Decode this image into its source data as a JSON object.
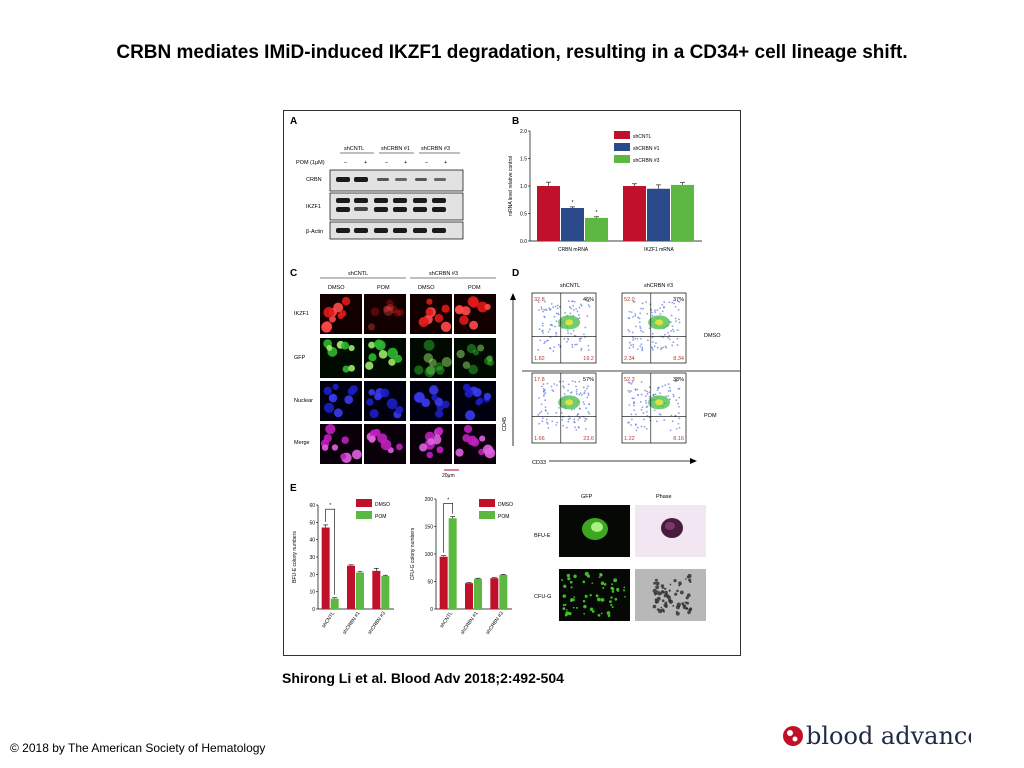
{
  "slide": {
    "title": "CRBN mediates IMiD-induced IKZF1 degradation, resulting in a CD34+ cell lineage shift.",
    "citation": "Shirong Li et al. Blood Adv 2018;2:492-504",
    "copyright": "© 2018 by The American Society of Hematology",
    "logo_text": "blood advances"
  },
  "colors": {
    "shCNTL": "#c0102a",
    "shCRBN1": "#2b4a8a",
    "shCRBN3": "#5cb840",
    "DMSO": "#c0102a",
    "POM": "#5cb840",
    "logo": "#c0102a"
  },
  "figure": {
    "panelA": {
      "label": "A",
      "groups": [
        "shCNTL",
        "shCRBN #1",
        "shCRBN #3"
      ],
      "treatment_label": "POM (1μM)",
      "lane_signs": [
        "–",
        "+",
        "–",
        "+",
        "–",
        "+"
      ],
      "blots": [
        "CRBN",
        "IKZF1",
        "β-Actin"
      ]
    },
    "panelC": {
      "label": "C",
      "groups": [
        "shCNTL",
        "shCRBN #3"
      ],
      "conditions": [
        "DMSO",
        "POM",
        "DMSO",
        "POM"
      ],
      "rows": [
        "IKZF1",
        "GFP",
        "Nuclear",
        "Merge"
      ],
      "scale_bar": "20μm"
    },
    "panelD": {
      "label": "D",
      "columns": [
        "shCNTL",
        "shCRBN #3"
      ],
      "rows": [
        "DMSO",
        "POM"
      ],
      "xaxis": "CD33",
      "yaxis": "CD45",
      "quadrants": [
        {
          "ul": "32.8",
          "ur": "46%",
          "ll": "1.82",
          "lr": "19.2"
        },
        {
          "ul": "52.0",
          "ur": "37%",
          "ll": "2.34",
          "lr": "8.34"
        },
        {
          "ul": "17.8",
          "ur": "57%",
          "ll": "1.66",
          "lr": "23.6"
        },
        {
          "ul": "52.3",
          "ur": "38%",
          "ll": "1.22",
          "lr": "8.16"
        }
      ]
    },
    "panelE": {
      "label": "E",
      "image_columns": [
        "GFP",
        "Phase"
      ],
      "image_rows": [
        "BFU-E",
        "CFU-G"
      ]
    }
  },
  "chart_data": [
    {
      "panel": "B",
      "type": "bar",
      "categories": [
        "CRBN mRNA",
        "IKZF1 mRNA"
      ],
      "series": [
        {
          "name": "shCNTL",
          "values": [
            1.0,
            1.0
          ]
        },
        {
          "name": "shCRBN #1",
          "values": [
            0.6,
            0.95
          ]
        },
        {
          "name": "shCRBN #3",
          "values": [
            0.42,
            1.02
          ]
        }
      ],
      "errors": [
        [
          0.07,
          0.04
        ],
        [
          0.02,
          0.07
        ],
        [
          0.02,
          0.04
        ]
      ],
      "ylabel": "mRNA level relative control",
      "ylim": [
        0,
        2.0
      ],
      "yticks": [
        "0.0",
        "0.5",
        "1.0",
        "1.5",
        "2.0"
      ],
      "significance": [
        "*",
        "*"
      ],
      "legend": "top-right"
    },
    {
      "panel": "E-left",
      "type": "bar",
      "categories": [
        "shCNTL",
        "shCRBN #1",
        "shCRBN #3"
      ],
      "series": [
        {
          "name": "DMSO",
          "values": [
            47,
            25,
            22
          ]
        },
        {
          "name": "POM",
          "values": [
            6,
            21,
            19
          ]
        }
      ],
      "errors": [
        [
          1.5,
          0.5,
          1.5
        ],
        [
          0.5,
          0.5,
          0.5
        ]
      ],
      "ylabel": "BFU-E colony numbers",
      "ylim": [
        0,
        60
      ],
      "yticks": [
        "0",
        "10",
        "20",
        "30",
        "40",
        "50",
        "60"
      ],
      "significance": [
        "*"
      ],
      "legend": "top-right"
    },
    {
      "panel": "E-middle",
      "type": "bar",
      "categories": [
        "shCNTL",
        "shCRBN #1",
        "shCRBN #3"
      ],
      "series": [
        {
          "name": "DMSO",
          "values": [
            95,
            47,
            56
          ]
        },
        {
          "name": "POM",
          "values": [
            165,
            55,
            62
          ]
        }
      ],
      "errors": [
        [
          2,
          1,
          1
        ],
        [
          3,
          1,
          1
        ]
      ],
      "ylabel": "CFU-G colony numbers",
      "ylim": [
        0,
        200
      ],
      "yticks": [
        "0",
        "50",
        "100",
        "150",
        "200"
      ],
      "significance": [
        "*"
      ],
      "legend": "top-right"
    }
  ]
}
